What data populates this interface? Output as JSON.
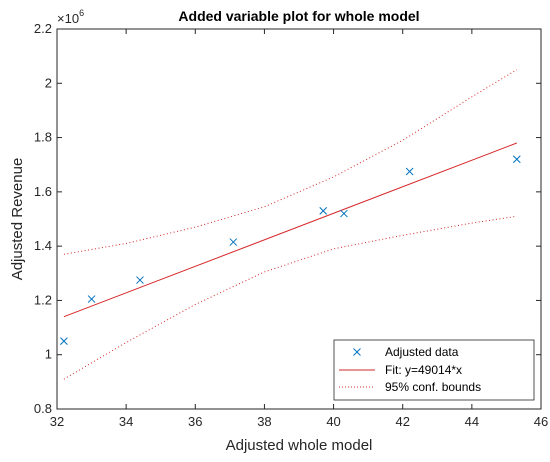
{
  "chart_data": {
    "type": "scatter",
    "title": "Added variable plot for whole model",
    "xlabel": "Adjusted whole model",
    "ylabel": "Adjusted Revenue",
    "y_multiplier_label": "×10",
    "y_multiplier_exponent": "6",
    "xlim": [
      32,
      46
    ],
    "ylim": [
      0.8,
      2.2
    ],
    "x_ticks": [
      32,
      34,
      36,
      38,
      40,
      42,
      44,
      46
    ],
    "x_tick_labels": [
      "32",
      "34",
      "36",
      "38",
      "40",
      "42",
      "44",
      "46"
    ],
    "y_ticks": [
      0.8,
      1.0,
      1.2,
      1.4,
      1.6,
      1.8,
      2.0,
      2.2
    ],
    "y_tick_labels": [
      "0.8",
      "1",
      "1.2",
      "1.4",
      "1.6",
      "1.8",
      "2",
      "2.2"
    ],
    "grid": false,
    "legend_position": "bottom-right",
    "series": [
      {
        "name": "Adjusted data",
        "kind": "marker",
        "marker": "x",
        "color": "#0072BD",
        "x": [
          32.2,
          33.0,
          34.4,
          37.1,
          39.7,
          40.3,
          42.2,
          45.3
        ],
        "y": [
          1.05,
          1.205,
          1.275,
          1.415,
          1.53,
          1.52,
          1.675,
          1.72
        ]
      },
      {
        "name": "Fit: y=49014*x",
        "kind": "line",
        "color": "#D62728",
        "x": [
          32.2,
          45.3
        ],
        "y": [
          1.14,
          1.78
        ]
      },
      {
        "name": "95% conf. bounds",
        "kind": "dotted",
        "color": "#D62728",
        "upper": {
          "x": [
            32.2,
            34,
            36,
            38,
            40,
            42,
            44,
            45.3
          ],
          "y": [
            1.37,
            1.41,
            1.47,
            1.545,
            1.655,
            1.79,
            1.95,
            2.05
          ]
        },
        "lower": {
          "x": [
            32.2,
            34,
            36,
            38,
            40,
            42,
            44,
            45.3
          ],
          "y": [
            0.91,
            1.045,
            1.185,
            1.305,
            1.39,
            1.44,
            1.485,
            1.51
          ]
        }
      }
    ]
  }
}
